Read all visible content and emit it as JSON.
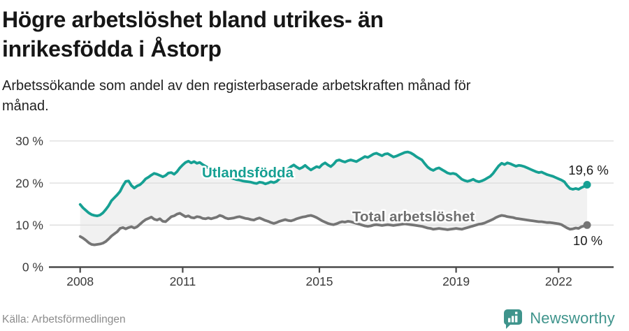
{
  "header": {
    "title_lines": [
      "Högre arbetslöshet bland utrikes- än",
      "inrikesfödda i Åstorp"
    ],
    "subtitle_lines": [
      "Arbetssökande som andel av den registerbaserade arbetskraften månad för",
      "månad."
    ]
  },
  "footer": {
    "source": "Källa: Arbetsförmedlingen",
    "brand": "Newsworthy"
  },
  "colors": {
    "foreign_born_line": "#16a093",
    "total_line": "#757575",
    "total_label": "#6f6f6f",
    "grid": "#dcdcdc",
    "axis": "#4a4a4a",
    "band_fill": "#f1f1f1",
    "value_label": "#1a1a1a",
    "axis_label": "#3a3a3a",
    "brand_teal": "#3f948c"
  },
  "chart_data": {
    "type": "line",
    "title": "Högre arbetslöshet bland utrikes- än inrikesfödda i Åstorp",
    "subtitle": "Arbetssökande som andel av den registerbaserade arbetskraften månad för månad.",
    "x_unit": "month",
    "x_start": "2008-01",
    "x_end": "2022-11",
    "x_tick_years": [
      2008,
      2011,
      2015,
      2019,
      2022
    ],
    "x_tick_labels": [
      "2008",
      "2011",
      "2015",
      "2019",
      "2022"
    ],
    "y_tick_values": [
      0,
      10,
      20,
      30
    ],
    "y_tick_labels": [
      "0 %",
      "10 %",
      "20 %",
      "30 %"
    ],
    "ylim": [
      0,
      32
    ],
    "grid": true,
    "legend": "inline-labels",
    "series": [
      {
        "name": "Utlandsfödda",
        "end_label": "19,6 %",
        "end_value": 19.6,
        "values": [
          14.9,
          14.1,
          13.5,
          12.9,
          12.5,
          12.3,
          12.2,
          12.4,
          12.9,
          13.7,
          14.6,
          15.8,
          16.5,
          17.2,
          18.0,
          19.3,
          20.4,
          20.5,
          19.4,
          18.8,
          19.3,
          19.6,
          20.2,
          21.0,
          21.4,
          21.9,
          22.3,
          22.1,
          21.8,
          21.5,
          21.8,
          22.4,
          22.5,
          22.1,
          22.7,
          23.6,
          24.3,
          24.9,
          25.2,
          24.8,
          25.1,
          24.7,
          24.9,
          24.4,
          24.0,
          23.6,
          23.2,
          22.8,
          22.5,
          22.2,
          21.9,
          21.7,
          21.4,
          21.2,
          21.0,
          20.8,
          20.7,
          20.5,
          20.4,
          20.3,
          20.2,
          20.0,
          19.9,
          20.2,
          20.1,
          19.8,
          20.0,
          20.3,
          20.1,
          20.4,
          21.0,
          21.8,
          22.6,
          23.3,
          23.9,
          24.3,
          23.8,
          23.4,
          23.7,
          24.2,
          23.6,
          23.1,
          23.5,
          23.9,
          23.7,
          24.4,
          24.8,
          24.3,
          23.9,
          24.5,
          25.3,
          25.5,
          25.2,
          25.0,
          25.3,
          25.5,
          25.3,
          25.1,
          25.5,
          25.9,
          26.3,
          26.1,
          26.5,
          26.9,
          27.1,
          26.8,
          26.5,
          26.9,
          27.0,
          26.6,
          26.2,
          26.4,
          26.7,
          27.0,
          27.3,
          27.4,
          27.2,
          26.8,
          26.3,
          25.9,
          25.5,
          24.6,
          23.8,
          23.3,
          23.0,
          23.4,
          23.6,
          23.2,
          22.8,
          22.4,
          22.2,
          22.3,
          22.1,
          21.5,
          20.9,
          20.6,
          20.4,
          20.6,
          20.9,
          20.5,
          20.3,
          20.5,
          20.8,
          21.2,
          21.6,
          22.3,
          23.2,
          24.1,
          24.7,
          24.4,
          24.8,
          24.6,
          24.3,
          24.0,
          24.2,
          24.1,
          23.9,
          23.6,
          23.3,
          23.0,
          22.7,
          22.5,
          22.6,
          22.3,
          22.0,
          21.8,
          21.6,
          21.3,
          21.0,
          20.7,
          20.3,
          19.4,
          18.7,
          18.5,
          18.7,
          18.5,
          18.9,
          19.2,
          19.6
        ]
      },
      {
        "name": "Total arbetslöshet",
        "end_label": "10 %",
        "end_value": 10.0,
        "values": [
          7.3,
          6.9,
          6.4,
          5.8,
          5.4,
          5.3,
          5.4,
          5.5,
          5.7,
          6.1,
          6.7,
          7.4,
          7.9,
          8.4,
          9.2,
          9.4,
          9.1,
          9.4,
          9.6,
          9.3,
          9.6,
          10.2,
          10.8,
          11.3,
          11.6,
          11.9,
          11.4,
          11.2,
          11.5,
          10.9,
          10.8,
          11.4,
          12.0,
          12.2,
          12.6,
          12.8,
          12.4,
          12.0,
          12.2,
          11.8,
          11.7,
          12.0,
          11.9,
          11.6,
          11.5,
          11.7,
          11.5,
          11.7,
          11.9,
          12.3,
          12.1,
          11.7,
          11.5,
          11.6,
          11.7,
          11.9,
          12.0,
          11.8,
          11.6,
          11.5,
          11.3,
          11.2,
          11.5,
          11.7,
          11.4,
          11.1,
          10.9,
          10.6,
          10.4,
          10.6,
          10.9,
          11.1,
          11.3,
          11.1,
          11.0,
          11.2,
          11.5,
          11.7,
          11.9,
          12.0,
          12.2,
          12.3,
          12.1,
          11.8,
          11.4,
          11.0,
          10.7,
          10.4,
          10.2,
          10.1,
          10.3,
          10.6,
          10.8,
          10.7,
          10.9,
          10.8,
          10.6,
          10.4,
          10.2,
          10.0,
          9.8,
          9.7,
          9.8,
          10.0,
          10.1,
          10.0,
          9.9,
          10.0,
          10.1,
          10.0,
          9.9,
          10.0,
          10.1,
          10.2,
          10.3,
          10.2,
          10.1,
          10.0,
          9.9,
          9.8,
          9.7,
          9.5,
          9.3,
          9.2,
          9.0,
          9.1,
          9.2,
          9.1,
          9.0,
          8.9,
          9.0,
          9.1,
          9.2,
          9.1,
          9.0,
          9.2,
          9.4,
          9.6,
          9.8,
          10.0,
          10.2,
          10.3,
          10.5,
          10.8,
          11.1,
          11.4,
          11.8,
          12.1,
          12.3,
          12.2,
          12.0,
          11.9,
          11.8,
          11.6,
          11.5,
          11.4,
          11.3,
          11.2,
          11.1,
          11.0,
          10.9,
          10.8,
          10.8,
          10.7,
          10.6,
          10.6,
          10.5,
          10.4,
          10.3,
          10.1,
          9.7,
          9.3,
          9.0,
          9.1,
          9.3,
          9.2,
          9.6,
          9.8,
          10.0
        ]
      }
    ]
  }
}
